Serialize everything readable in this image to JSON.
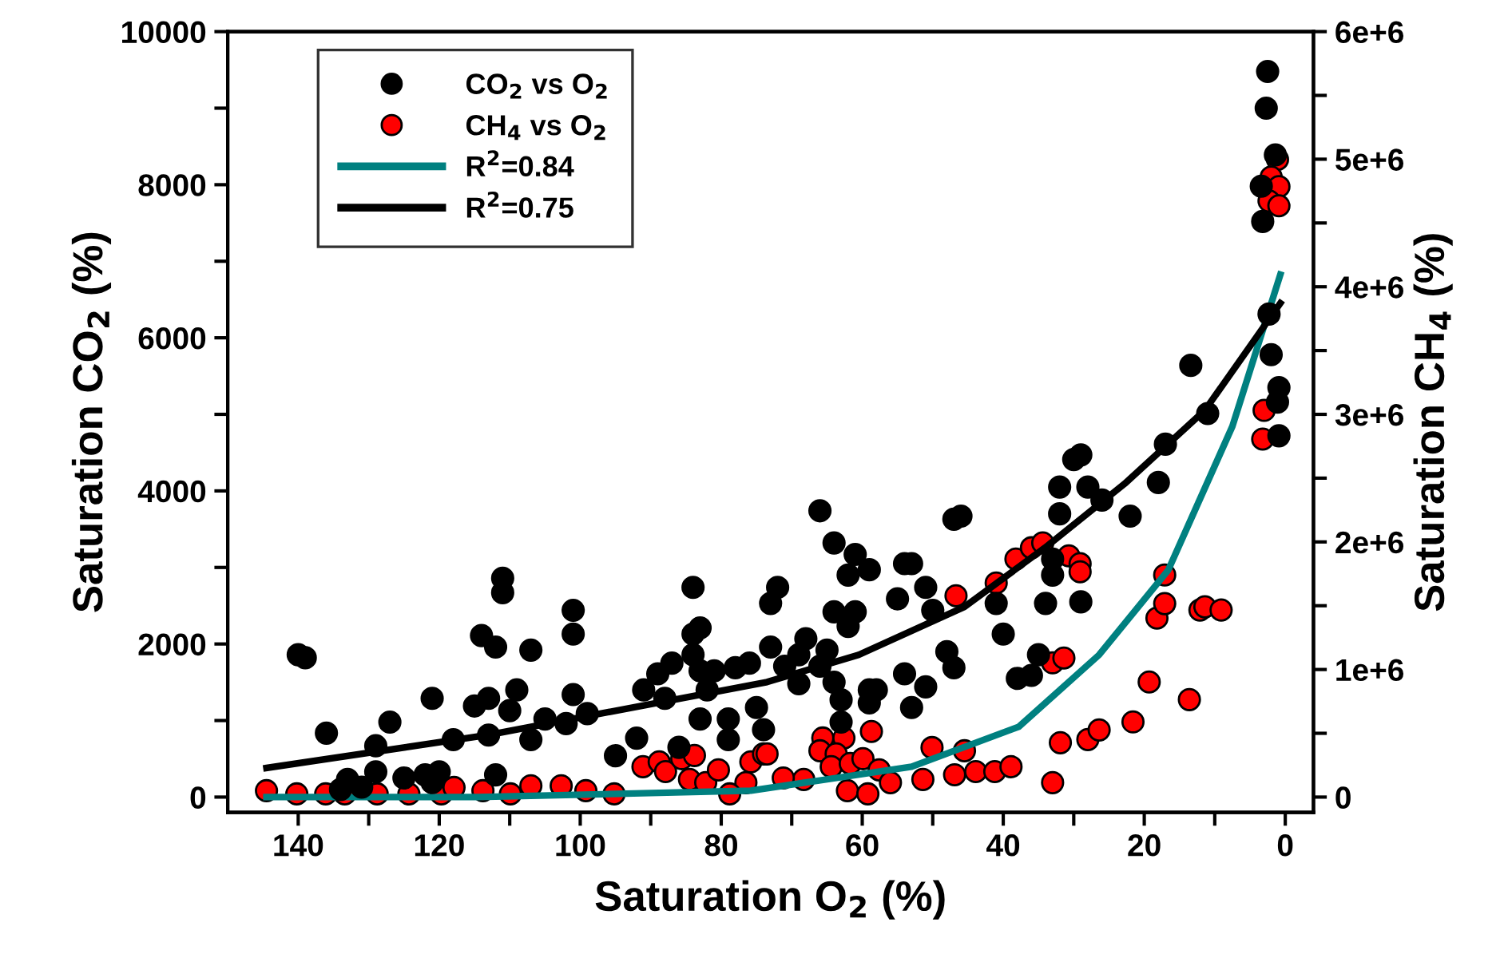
{
  "chart_data": {
    "type": "scatter",
    "xlabel": "Saturation O$_{2}$ (%)",
    "ylabel": "Saturation CO$_{2}$ (%)",
    "y2label": "Saturation CH$_{4}$ (%)",
    "xlim": [
      150,
      -4
    ],
    "xticks": [
      {
        "value": 140,
        "label": "140"
      },
      {
        "value": 130,
        "label": null
      },
      {
        "value": 120,
        "label": "120"
      },
      {
        "value": 110,
        "label": null
      },
      {
        "value": 100,
        "label": "100"
      },
      {
        "value": 90,
        "label": null
      },
      {
        "value": 80,
        "label": "80"
      },
      {
        "value": 70,
        "label": null
      },
      {
        "value": 60,
        "label": "60"
      },
      {
        "value": 50,
        "label": null
      },
      {
        "value": 40,
        "label": "40"
      },
      {
        "value": 30,
        "label": null
      },
      {
        "value": 20,
        "label": "20"
      },
      {
        "value": 10,
        "label": null
      },
      {
        "value": 0,
        "label": "0"
      }
    ],
    "ylim": [
      -200,
      10000
    ],
    "yticks": [
      0,
      {
        "value": 1000,
        "label": null
      },
      2000,
      {
        "value": 3000,
        "label": null
      },
      4000,
      {
        "value": 5000,
        "label": null
      },
      6000,
      {
        "value": 7000,
        "label": null
      },
      8000,
      {
        "value": 9000,
        "label": null
      },
      10000
    ],
    "y2lim": [
      -120000,
      6000000
    ],
    "y2ticks": [
      0,
      {
        "value": 500000,
        "label": null
      },
      {
        "value": 1000000,
        "label": "1e+6"
      },
      {
        "value": 1500000,
        "label": null
      },
      {
        "value": 2000000,
        "label": "2e+6"
      },
      {
        "value": 2500000,
        "label": null
      },
      {
        "value": 3000000,
        "label": "3e+6"
      },
      {
        "value": 3500000,
        "label": null
      },
      {
        "value": 4000000,
        "label": "4e+6"
      },
      {
        "value": 4500000,
        "label": null
      },
      {
        "value": 5000000,
        "label": "5e+6"
      },
      {
        "value": 5500000,
        "label": null
      },
      {
        "value": 6000000,
        "label": "6e+6"
      }
    ],
    "grid": false,
    "legend": "top left",
    "marker": "circle",
    "series": [
      {
        "name": "CO$_{2}$ vs O$_{2}$",
        "color": "#000000",
        "x": [
          140,
          139,
          136,
          133,
          129,
          129,
          127,
          125,
          122,
          120,
          121,
          118,
          115,
          114,
          112,
          113,
          113,
          111,
          111,
          110,
          109,
          107,
          105,
          107,
          102,
          101,
          101,
          101,
          99,
          112,
          95,
          92,
          91,
          89,
          87,
          88,
          84,
          84,
          83,
          84,
          83,
          82,
          83,
          81,
          78,
          76,
          79,
          75,
          86,
          79,
          66,
          64,
          61,
          59,
          62,
          72,
          73,
          64,
          61,
          62,
          54,
          53,
          51,
          55,
          50,
          73,
          68,
          65,
          69,
          66,
          71,
          64,
          69,
          63,
          54,
          51,
          59,
          58,
          59,
          53,
          63,
          48,
          47,
          46,
          47,
          41,
          40,
          38,
          36,
          35,
          34,
          33,
          33,
          32,
          32,
          30,
          29,
          28,
          26,
          29,
          22,
          18,
          17,
          11,
          74,
          2.5,
          2.7,
          1.4,
          3.4,
          3.2,
          2.3,
          2.0,
          0.9,
          1.1,
          0.9,
          13.4,
          134,
          131,
          121
        ],
        "values": [
          1860,
          1820,
          835,
          230,
          670,
          330,
          980,
          250,
          290,
          330,
          1290,
          750,
          1190,
          2110,
          1960,
          810,
          1290,
          2860,
          2670,
          1130,
          1400,
          1920,
          1020,
          750,
          960,
          2440,
          2130,
          1340,
          1090,
          290,
          540,
          770,
          1400,
          1610,
          1750,
          1290,
          2740,
          2130,
          2210,
          1860,
          1650,
          1400,
          1020,
          1650,
          1690,
          1750,
          1020,
          1170,
          650,
          750,
          3740,
          3320,
          3170,
          2970,
          2900,
          2740,
          2530,
          2420,
          2420,
          2230,
          3050,
          3050,
          2740,
          2590,
          2440,
          1960,
          2070,
          1920,
          1860,
          1710,
          1710,
          1500,
          1480,
          1270,
          1610,
          1440,
          1400,
          1400,
          1230,
          1170,
          980,
          1900,
          1690,
          3670,
          3630,
          2530,
          2130,
          1550,
          1590,
          1860,
          2530,
          2900,
          3110,
          3700,
          4050,
          4410,
          4470,
          4050,
          3880,
          2550,
          3670,
          4110,
          4610,
          5010,
          880,
          9480,
          9000,
          8390,
          7980,
          7520,
          6310,
          5780,
          5350,
          5160,
          4720,
          5640,
          100,
          130,
          190
        ]
      },
      {
        "name": "CH$_{4}$ vs O$_{2}$",
        "axis": "y2",
        "color": "#ff0000",
        "x": [
          144.5,
          140.2,
          136.1,
          133.4,
          128.8,
          124.3,
          119.7,
          117.9,
          113.8,
          109.9,
          107.0,
          102.7,
          99.2,
          95.2,
          91.1,
          88.8,
          87.9,
          85.6,
          83.8,
          84.5,
          82.2,
          80.4,
          75.8,
          74.0,
          76.5,
          78.8,
          65.6,
          62.6,
          66.0,
          63.7,
          64.4,
          61.7,
          59.9,
          58.7,
          73.5,
          57.6,
          50.1,
          45.5,
          51.4,
          56.0,
          46.9,
          43.9,
          41.2,
          38.9,
          33.0,
          31.9,
          28.0,
          26.4,
          21.6,
          19.3,
          13.6,
          33.0,
          31.4,
          46.7,
          41.0,
          38.2,
          36.0,
          34.4,
          30.7,
          29.1,
          29.1,
          18.2,
          17.1,
          17.1,
          12.1,
          11.4,
          9.1,
          3.0,
          3.2,
          68.3,
          62.1,
          59.2,
          71.2,
          1.1,
          2.0,
          0.9,
          2.3,
          0.9
        ],
        "values": [
          50000,
          25000,
          25000,
          25000,
          25000,
          25000,
          25000,
          75000,
          50000,
          25000,
          88000,
          88000,
          50000,
          25000,
          238000,
          276000,
          200000,
          301000,
          326000,
          138000,
          113000,
          213000,
          276000,
          338000,
          113000,
          25000,
          463000,
          463000,
          363000,
          338000,
          238000,
          263000,
          301000,
          514000,
          338000,
          213000,
          388000,
          363000,
          138000,
          113000,
          175000,
          200000,
          200000,
          238000,
          113000,
          426000,
          451000,
          526000,
          589000,
          902000,
          764000,
          1052000,
          1090000,
          1578000,
          1678000,
          1866000,
          1954000,
          1992000,
          1891000,
          1829000,
          1766000,
          1403000,
          1516000,
          1741000,
          1466000,
          1491000,
          1466000,
          3031000,
          2806000,
          138000,
          50000,
          25000,
          150000,
          4998000,
          4860000,
          4785000,
          4672000,
          4635000
        ]
      },
      {
        "name": "R$^{2}$=0.84",
        "type": "line",
        "axis": "y2",
        "color": "#008080",
        "marker": "none",
        "x": [
          144.5,
          114.5,
          75.8,
          53.0,
          37.8,
          26.4,
          16.6,
          7.5,
          0.7
        ],
        "values": [
          0,
          0,
          50000,
          238000,
          551000,
          1115000,
          1779000,
          2906000,
          4096000
        ]
      },
      {
        "name": "R$^{2}$=0.75",
        "type": "line",
        "color": "#000000",
        "marker": "none",
        "x": [
          144.5,
          112.9,
          73.5,
          60.5,
          45.5,
          34.1,
          22.8,
          11.4,
          0.7
        ],
        "values": [
          380,
          814,
          1503,
          1858,
          2485,
          3257,
          4092,
          5053,
          6452
        ]
      }
    ]
  }
}
